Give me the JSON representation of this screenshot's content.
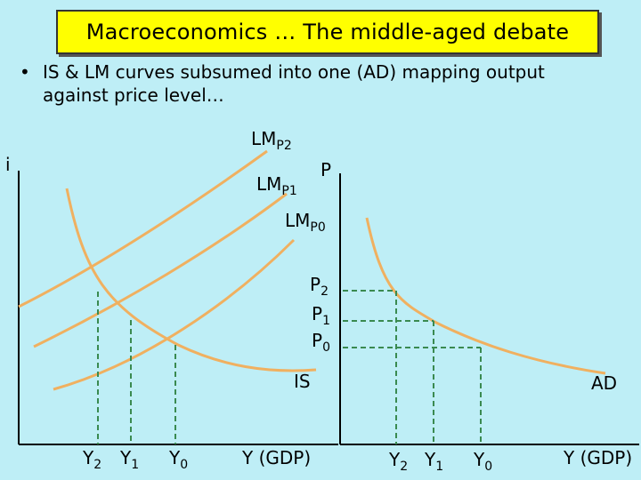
{
  "slide": {
    "title": "Macroeconomics … The middle-aged debate",
    "bullet_line1": "IS & LM curves subsumed into one (AD) mapping output",
    "bullet_line2": "against price level…"
  },
  "left_diagram": {
    "y_axis_label": "i",
    "x_axis_label": "Y (GDP)",
    "curve_labels": {
      "lm_p2": {
        "base": "LM",
        "sub": "P2"
      },
      "lm_p1": {
        "base": "LM",
        "sub": "P1"
      },
      "lm_p0": {
        "base": "LM",
        "sub": "P0"
      },
      "is": "IS"
    },
    "x_ticks": [
      {
        "base": "Y",
        "sub": "2"
      },
      {
        "base": "Y",
        "sub": "1"
      },
      {
        "base": "Y",
        "sub": "0"
      }
    ]
  },
  "right_diagram": {
    "y_axis_label": "P",
    "x_axis_label": "Y (GDP)",
    "curve_label": "AD",
    "price_labels": [
      {
        "base": "P",
        "sub": "2"
      },
      {
        "base": "P",
        "sub": "1"
      },
      {
        "base": "P",
        "sub": "0"
      }
    ],
    "x_ticks": [
      {
        "base": "Y",
        "sub": "2"
      },
      {
        "base": "Y",
        "sub": "1"
      },
      {
        "base": "Y",
        "sub": "0"
      }
    ]
  },
  "colors": {
    "background": "#BEEEF6",
    "curve": "#F0B060",
    "dashed_guide": "#3A8A50",
    "axis": "#000000",
    "title_box": "#FFFF00"
  }
}
